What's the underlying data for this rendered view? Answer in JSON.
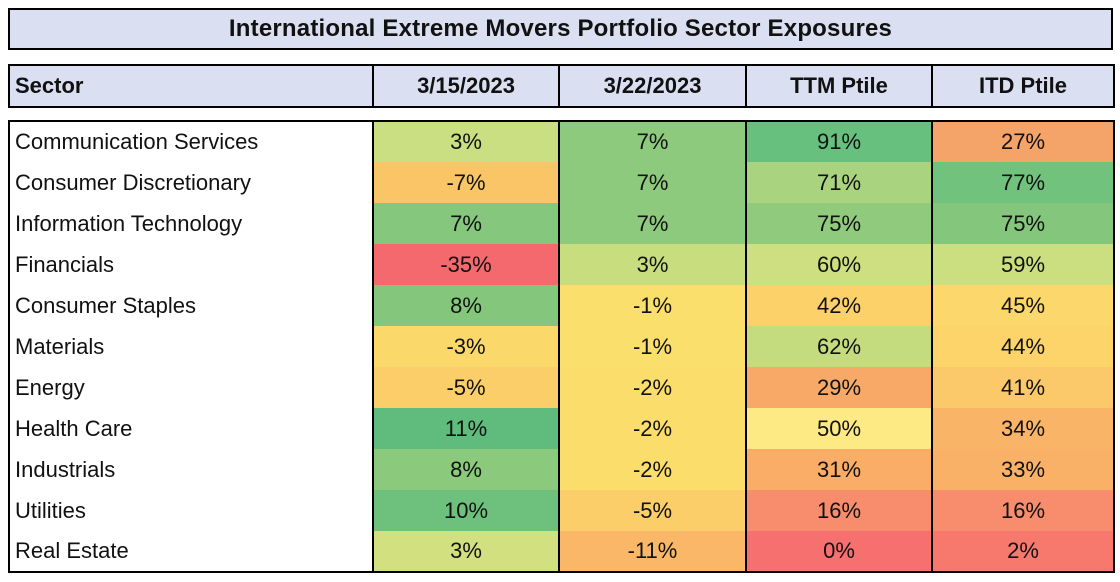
{
  "title": "International Extreme Movers Portfolio Sector Exposures",
  "columns": [
    "Sector",
    "3/15/2023",
    "3/22/2023",
    "TTM Ptile",
    "ITD Ptile"
  ],
  "rows": [
    {
      "sector": "Communication Services",
      "values": [
        "3%",
        "7%",
        "91%",
        "27%"
      ],
      "colors": [
        "#c9df82",
        "#8eca7d",
        "#67c07e",
        "#f5a469"
      ]
    },
    {
      "sector": "Consumer Discretionary",
      "values": [
        "-7%",
        "7%",
        "71%",
        "77%"
      ],
      "colors": [
        "#f9c567",
        "#8eca7d",
        "#aad37f",
        "#70c27d"
      ]
    },
    {
      "sector": "Information Technology",
      "values": [
        "7%",
        "7%",
        "75%",
        "75%"
      ],
      "colors": [
        "#85c77c",
        "#8eca7d",
        "#90ca7d",
        "#84c77c"
      ]
    },
    {
      "sector": "Financials",
      "values": [
        "-35%",
        "3%",
        "60%",
        "59%"
      ],
      "colors": [
        "#f4696e",
        "#c7dd7e",
        "#cddf80",
        "#cbdf80"
      ]
    },
    {
      "sector": "Consumer Staples",
      "values": [
        "8%",
        "-1%",
        "42%",
        "45%"
      ],
      "colors": [
        "#84c77c",
        "#fbdf6c",
        "#fcd16a",
        "#fcd76b"
      ]
    },
    {
      "sector": "Materials",
      "values": [
        "-3%",
        "-1%",
        "62%",
        "44%"
      ],
      "colors": [
        "#fbd86a",
        "#fbdf6c",
        "#c5dc7e",
        "#fcd46a"
      ]
    },
    {
      "sector": "Energy",
      "values": [
        "-5%",
        "-2%",
        "29%",
        "41%"
      ],
      "colors": [
        "#fbce69",
        "#fbdd6b",
        "#f8a967",
        "#fbc969"
      ]
    },
    {
      "sector": "Health Care",
      "values": [
        "11%",
        "-2%",
        "50%",
        "34%"
      ],
      "colors": [
        "#5fbc7d",
        "#fbdd6b",
        "#fdea84",
        "#f9b468"
      ]
    },
    {
      "sector": "Industrials",
      "values": [
        "8%",
        "-2%",
        "31%",
        "33%"
      ],
      "colors": [
        "#8bc97d",
        "#fbdd6b",
        "#f9ad67",
        "#f9b167"
      ]
    },
    {
      "sector": "Utilities",
      "values": [
        "10%",
        "-5%",
        "16%",
        "16%"
      ],
      "colors": [
        "#6ec17d",
        "#fbce69",
        "#f78d6c",
        "#f78d6c"
      ]
    },
    {
      "sector": "Real Estate",
      "values": [
        "3%",
        "-11%",
        "0%",
        "2%"
      ],
      "colors": [
        "#d3e080",
        "#f9b767",
        "#f5706f",
        "#f7796e"
      ]
    }
  ],
  "theme": {
    "header_bg": "#dae0f1",
    "border": "#000000",
    "text": "#111111",
    "scale_low": "#f4696e",
    "scale_mid": "#fbdf6c",
    "scale_high": "#5fbc7d"
  },
  "chart_data": {
    "type": "table",
    "title": "International Extreme Movers Portfolio Sector Exposures",
    "columns": [
      "Sector",
      "3/15/2023",
      "3/22/2023",
      "TTM Ptile",
      "ITD Ptile"
    ],
    "categories": [
      "Communication Services",
      "Consumer Discretionary",
      "Information Technology",
      "Financials",
      "Consumer Staples",
      "Materials",
      "Energy",
      "Health Care",
      "Industrials",
      "Utilities",
      "Real Estate"
    ],
    "series": [
      {
        "name": "3/15/2023",
        "values": [
          3,
          -7,
          7,
          -35,
          8,
          -3,
          -5,
          11,
          8,
          10,
          3
        ],
        "unit": "%"
      },
      {
        "name": "3/22/2023",
        "values": [
          7,
          7,
          7,
          3,
          -1,
          -1,
          -2,
          -2,
          -2,
          -5,
          -11
        ],
        "unit": "%"
      },
      {
        "name": "TTM Ptile",
        "values": [
          91,
          71,
          75,
          60,
          42,
          62,
          29,
          50,
          31,
          16,
          0
        ],
        "unit": "%"
      },
      {
        "name": "ITD Ptile",
        "values": [
          27,
          77,
          75,
          59,
          45,
          44,
          41,
          34,
          33,
          16,
          2
        ],
        "unit": "%"
      }
    ],
    "layout": {
      "color_scale": "red-yellow-green heatmap per cell",
      "grid": "black column dividers, outer black borders"
    }
  }
}
